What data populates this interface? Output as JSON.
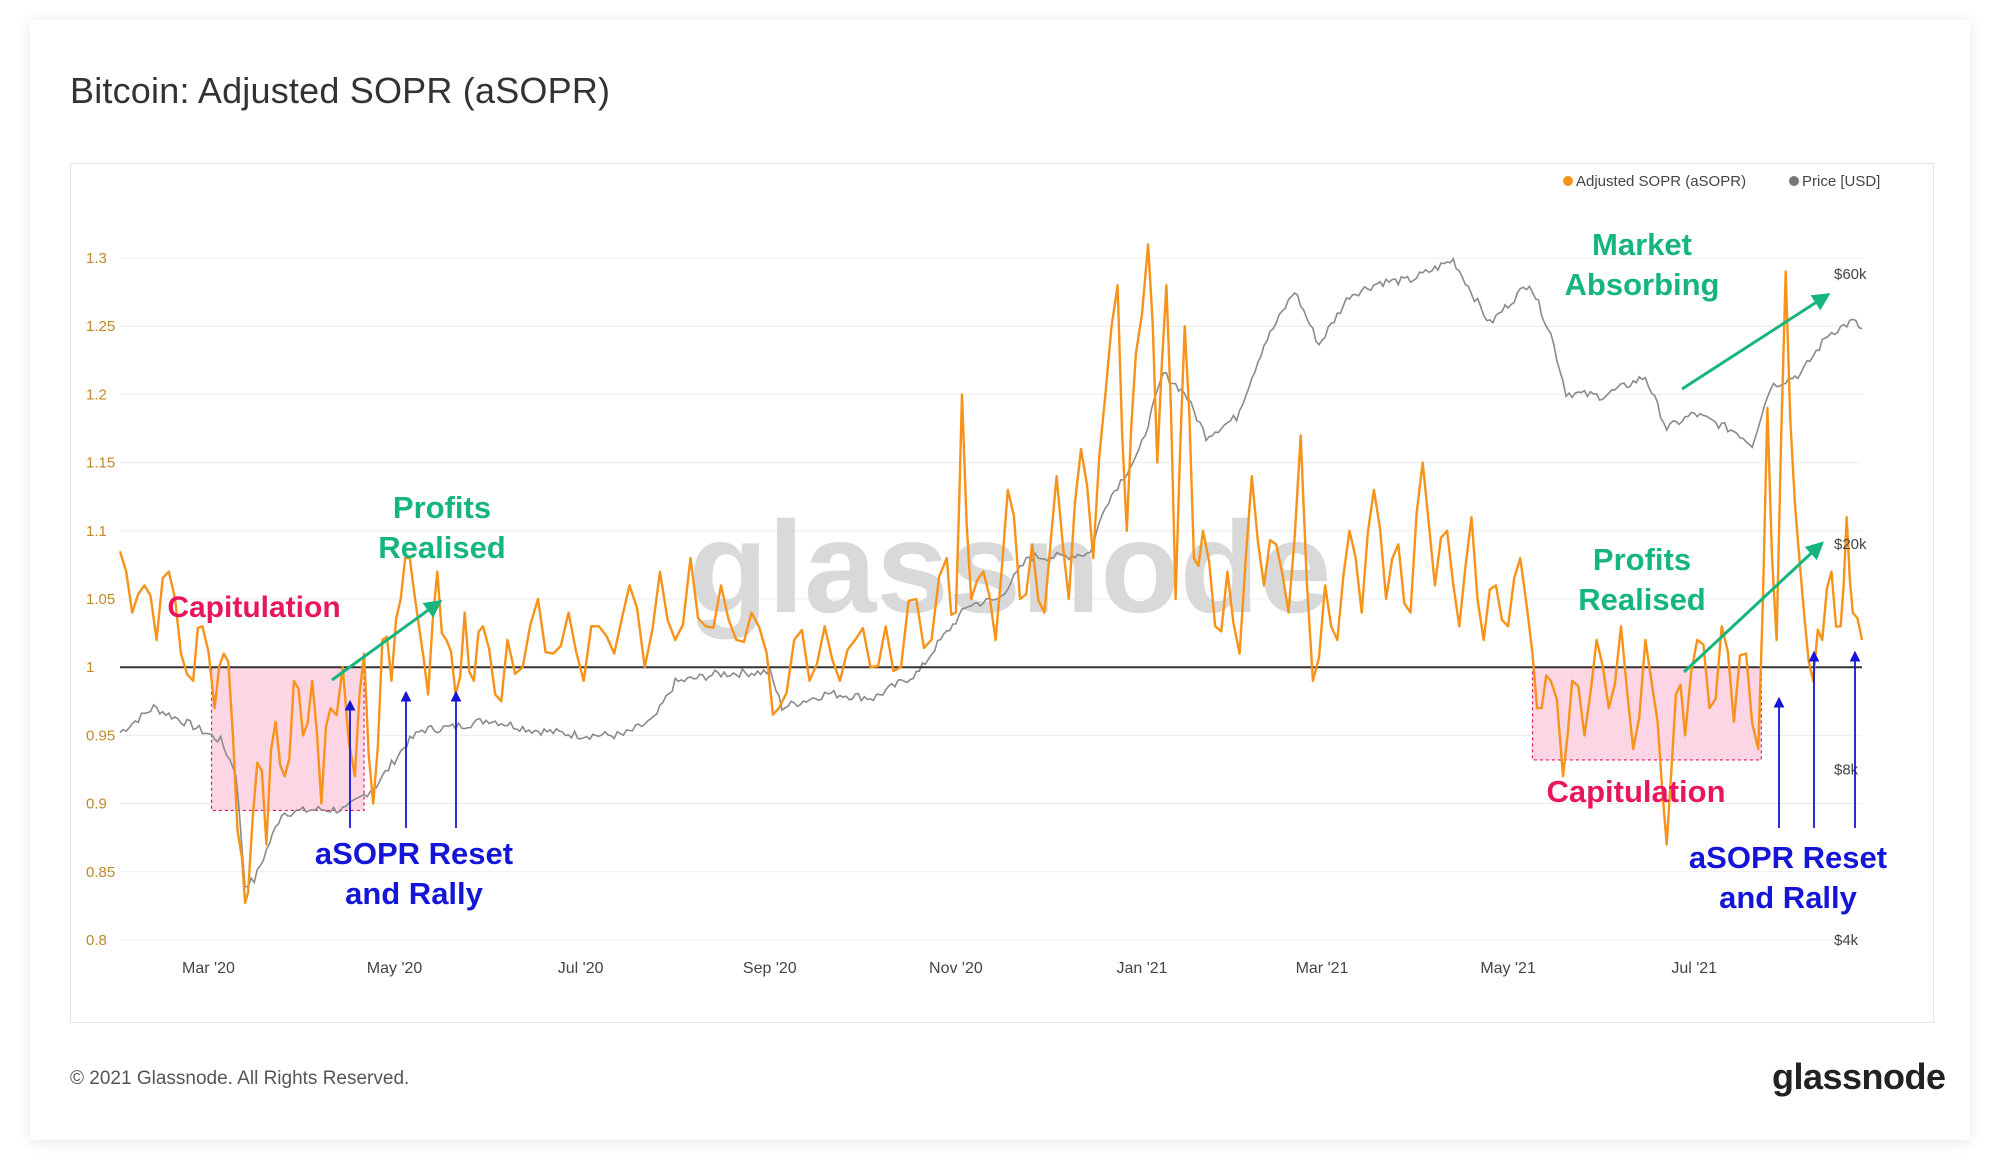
{
  "title": "Bitcoin: Adjusted SOPR (aSOPR)",
  "footer": "© 2021 Glassnode. All Rights Reserved.",
  "brand": "glassnode",
  "watermark": "glassnode",
  "colors": {
    "asopr": "#f7931a",
    "price": "#8a8a8a",
    "green": "#16b57e",
    "red": "#e8175d",
    "blue": "#1515d8",
    "pink_fill": "#fdd6e5"
  },
  "legend": [
    {
      "label": "Adjusted SOPR (aSOPR)",
      "color": "#f7931a"
    },
    {
      "label": "Price [USD]",
      "color": "#777777"
    }
  ],
  "annotations": [
    {
      "lines": [
        "Capitulation"
      ],
      "color": "#e8175d",
      "kind": "text"
    },
    {
      "lines": [
        "Profits",
        "Realised"
      ],
      "color": "#16b57e",
      "kind": "text"
    },
    {
      "lines": [
        "aSOPR Reset",
        "and Rally"
      ],
      "color": "#1515d8",
      "kind": "text"
    },
    {
      "lines": [
        "Market",
        "Absorbing"
      ],
      "color": "#16b57e",
      "kind": "text"
    },
    {
      "lines": [
        "Profits",
        "Realised"
      ],
      "color": "#16b57e",
      "kind": "text"
    },
    {
      "lines": [
        "Capitulation"
      ],
      "color": "#e8175d",
      "kind": "text"
    },
    {
      "lines": [
        "aSOPR Reset",
        "and Rally"
      ],
      "color": "#1515d8",
      "kind": "text"
    }
  ],
  "chart_data": {
    "type": "line",
    "x_range": [
      "2020-02-01",
      "2021-08-25"
    ],
    "x_ticks": [
      {
        "label": "Mar '20",
        "date": "2020-03-01"
      },
      {
        "label": "May '20",
        "date": "2020-05-01"
      },
      {
        "label": "Jul '20",
        "date": "2020-07-01"
      },
      {
        "label": "Sep '20",
        "date": "2020-09-01"
      },
      {
        "label": "Nov '20",
        "date": "2020-11-01"
      },
      {
        "label": "Jan '21",
        "date": "2021-01-01"
      },
      {
        "label": "Mar '21",
        "date": "2021-03-01"
      },
      {
        "label": "May '21",
        "date": "2021-05-01"
      },
      {
        "label": "Jul '21",
        "date": "2021-07-01"
      }
    ],
    "y_left": {
      "min": 0.8,
      "max": 1.3,
      "ticks": [
        {
          "label": "0.8",
          "value": 0.8
        },
        {
          "label": "0.85",
          "value": 0.85
        },
        {
          "label": "0.9",
          "value": 0.9
        },
        {
          "label": "0.95",
          "value": 0.95
        },
        {
          "label": "1",
          "value": 1.0
        },
        {
          "label": "1.05",
          "value": 1.05
        },
        {
          "label": "1.1",
          "value": 1.1
        },
        {
          "label": "1.15",
          "value": 1.15
        },
        {
          "label": "1.2",
          "value": 1.2
        },
        {
          "label": "1.25",
          "value": 1.25
        },
        {
          "label": "1.3",
          "value": 1.3
        }
      ]
    },
    "y_right": {
      "scale": "log",
      "min": 4000,
      "max": 64000,
      "ticks": [
        {
          "label": "$4k",
          "value": 4000
        },
        {
          "label": "$8k",
          "value": 8000
        },
        {
          "label": "$20k",
          "value": 20000
        },
        {
          "label": "$60k",
          "value": 60000
        }
      ]
    },
    "baseline": 1.0,
    "series": [
      {
        "name": "Adjusted SOPR (aSOPR)",
        "axis": "left",
        "points": [
          [
            "2020-02-01",
            1.085
          ],
          [
            "2020-02-05",
            1.04
          ],
          [
            "2020-02-09",
            1.06
          ],
          [
            "2020-02-13",
            1.02
          ],
          [
            "2020-02-17",
            1.07
          ],
          [
            "2020-02-21",
            1.01
          ],
          [
            "2020-02-25",
            0.99
          ],
          [
            "2020-02-28",
            1.03
          ],
          [
            "2020-03-03",
            0.97
          ],
          [
            "2020-03-06",
            1.01
          ],
          [
            "2020-03-09",
            0.95
          ],
          [
            "2020-03-12",
            0.86
          ],
          [
            "2020-03-14",
            0.835
          ],
          [
            "2020-03-17",
            0.93
          ],
          [
            "2020-03-20",
            0.87
          ],
          [
            "2020-03-23",
            0.96
          ],
          [
            "2020-03-26",
            0.92
          ],
          [
            "2020-03-29",
            0.99
          ],
          [
            "2020-04-01",
            0.95
          ],
          [
            "2020-04-04",
            0.99
          ],
          [
            "2020-04-07",
            0.9
          ],
          [
            "2020-04-10",
            0.97
          ],
          [
            "2020-04-14",
            1.0
          ],
          [
            "2020-04-18",
            0.92
          ],
          [
            "2020-04-21",
            1.01
          ],
          [
            "2020-04-24",
            0.9
          ],
          [
            "2020-04-27",
            1.02
          ],
          [
            "2020-04-30",
            0.99
          ],
          [
            "2020-05-03",
            1.05
          ],
          [
            "2020-05-06",
            1.08
          ],
          [
            "2020-05-09",
            1.03
          ],
          [
            "2020-05-12",
            0.98
          ],
          [
            "2020-05-15",
            1.07
          ],
          [
            "2020-05-18",
            1.02
          ],
          [
            "2020-05-21",
            0.98
          ],
          [
            "2020-05-24",
            1.04
          ],
          [
            "2020-05-27",
            0.99
          ],
          [
            "2020-05-30",
            1.03
          ],
          [
            "2020-06-03",
            0.98
          ],
          [
            "2020-06-07",
            1.02
          ],
          [
            "2020-06-12",
            1.0
          ],
          [
            "2020-06-17",
            1.05
          ],
          [
            "2020-06-22",
            1.01
          ],
          [
            "2020-06-27",
            1.04
          ],
          [
            "2020-07-02",
            0.99
          ],
          [
            "2020-07-07",
            1.03
          ],
          [
            "2020-07-12",
            1.01
          ],
          [
            "2020-07-17",
            1.06
          ],
          [
            "2020-07-22",
            1.0
          ],
          [
            "2020-07-27",
            1.07
          ],
          [
            "2020-08-01",
            1.02
          ],
          [
            "2020-08-06",
            1.08
          ],
          [
            "2020-08-11",
            1.03
          ],
          [
            "2020-08-16",
            1.06
          ],
          [
            "2020-08-21",
            1.02
          ],
          [
            "2020-08-26",
            1.04
          ],
          [
            "2020-08-31",
            1.01
          ],
          [
            "2020-09-04",
            0.97
          ],
          [
            "2020-09-09",
            1.02
          ],
          [
            "2020-09-14",
            0.99
          ],
          [
            "2020-09-19",
            1.03
          ],
          [
            "2020-09-24",
            0.99
          ],
          [
            "2020-09-29",
            1.02
          ],
          [
            "2020-10-04",
            1.0
          ],
          [
            "2020-10-09",
            1.03
          ],
          [
            "2020-10-14",
            1.0
          ],
          [
            "2020-10-19",
            1.05
          ],
          [
            "2020-10-24",
            1.02
          ],
          [
            "2020-10-29",
            1.08
          ],
          [
            "2020-11-01",
            1.04
          ],
          [
            "2020-11-03",
            1.2
          ],
          [
            "2020-11-06",
            1.05
          ],
          [
            "2020-11-10",
            1.07
          ],
          [
            "2020-11-14",
            1.02
          ],
          [
            "2020-11-18",
            1.13
          ],
          [
            "2020-11-22",
            1.05
          ],
          [
            "2020-11-26",
            1.09
          ],
          [
            "2020-11-30",
            1.04
          ],
          [
            "2020-12-04",
            1.14
          ],
          [
            "2020-12-08",
            1.05
          ],
          [
            "2020-12-12",
            1.16
          ],
          [
            "2020-12-16",
            1.08
          ],
          [
            "2020-12-20",
            1.2
          ],
          [
            "2020-12-24",
            1.28
          ],
          [
            "2020-12-27",
            1.1
          ],
          [
            "2020-12-30",
            1.23
          ],
          [
            "2021-01-03",
            1.31
          ],
          [
            "2021-01-06",
            1.15
          ],
          [
            "2021-01-09",
            1.28
          ],
          [
            "2021-01-12",
            1.05
          ],
          [
            "2021-01-15",
            1.25
          ],
          [
            "2021-01-18",
            1.08
          ],
          [
            "2021-01-21",
            1.1
          ],
          [
            "2021-01-25",
            1.03
          ],
          [
            "2021-01-29",
            1.07
          ],
          [
            "2021-02-02",
            1.01
          ],
          [
            "2021-02-06",
            1.14
          ],
          [
            "2021-02-10",
            1.06
          ],
          [
            "2021-02-14",
            1.09
          ],
          [
            "2021-02-18",
            1.04
          ],
          [
            "2021-02-22",
            1.17
          ],
          [
            "2021-02-26",
            0.99
          ],
          [
            "2021-03-02",
            1.06
          ],
          [
            "2021-03-06",
            1.02
          ],
          [
            "2021-03-10",
            1.1
          ],
          [
            "2021-03-14",
            1.04
          ],
          [
            "2021-03-18",
            1.13
          ],
          [
            "2021-03-22",
            1.05
          ],
          [
            "2021-03-26",
            1.09
          ],
          [
            "2021-03-30",
            1.04
          ],
          [
            "2021-04-03",
            1.15
          ],
          [
            "2021-04-07",
            1.06
          ],
          [
            "2021-04-11",
            1.1
          ],
          [
            "2021-04-15",
            1.03
          ],
          [
            "2021-04-19",
            1.11
          ],
          [
            "2021-04-23",
            1.02
          ],
          [
            "2021-04-27",
            1.06
          ],
          [
            "2021-05-01",
            1.03
          ],
          [
            "2021-05-05",
            1.08
          ],
          [
            "2021-05-09",
            1.01
          ],
          [
            "2021-05-12",
            0.97
          ],
          [
            "2021-05-15",
            0.99
          ],
          [
            "2021-05-19",
            0.92
          ],
          [
            "2021-05-22",
            0.99
          ],
          [
            "2021-05-26",
            0.95
          ],
          [
            "2021-05-30",
            1.02
          ],
          [
            "2021-06-03",
            0.97
          ],
          [
            "2021-06-07",
            1.03
          ],
          [
            "2021-06-11",
            0.94
          ],
          [
            "2021-06-15",
            1.02
          ],
          [
            "2021-06-19",
            0.96
          ],
          [
            "2021-06-22",
            0.87
          ],
          [
            "2021-06-25",
            0.98
          ],
          [
            "2021-06-28",
            0.95
          ],
          [
            "2021-07-02",
            1.02
          ],
          [
            "2021-07-06",
            0.97
          ],
          [
            "2021-07-10",
            1.03
          ],
          [
            "2021-07-14",
            0.96
          ],
          [
            "2021-07-18",
            1.01
          ],
          [
            "2021-07-22",
            0.94
          ],
          [
            "2021-07-25",
            1.19
          ],
          [
            "2021-07-28",
            1.02
          ],
          [
            "2021-07-31",
            1.29
          ],
          [
            "2021-08-03",
            1.12
          ],
          [
            "2021-08-06",
            1.04
          ],
          [
            "2021-08-09",
            0.99
          ],
          [
            "2021-08-12",
            1.02
          ],
          [
            "2021-08-15",
            1.07
          ],
          [
            "2021-08-18",
            1.03
          ],
          [
            "2021-08-20",
            1.11
          ],
          [
            "2021-08-22",
            1.04
          ],
          [
            "2021-08-25",
            1.02
          ]
        ]
      },
      {
        "name": "Price [USD]",
        "axis": "right",
        "points": [
          [
            "2020-02-01",
            9300
          ],
          [
            "2020-02-12",
            10300
          ],
          [
            "2020-02-24",
            9600
          ],
          [
            "2020-03-05",
            9000
          ],
          [
            "2020-03-10",
            7900
          ],
          [
            "2020-03-13",
            5000
          ],
          [
            "2020-03-16",
            5100
          ],
          [
            "2020-03-25",
            6700
          ],
          [
            "2020-04-05",
            6800
          ],
          [
            "2020-04-15",
            6800
          ],
          [
            "2020-04-25",
            7500
          ],
          [
            "2020-05-05",
            8900
          ],
          [
            "2020-05-10",
            9400
          ],
          [
            "2020-05-20",
            9500
          ],
          [
            "2020-06-01",
            9800
          ],
          [
            "2020-06-15",
            9400
          ],
          [
            "2020-07-01",
            9200
          ],
          [
            "2020-07-15",
            9200
          ],
          [
            "2020-07-25",
            9800
          ],
          [
            "2020-08-01",
            11400
          ],
          [
            "2020-08-15",
            11800
          ],
          [
            "2020-09-01",
            11900
          ],
          [
            "2020-09-05",
            10300
          ],
          [
            "2020-09-20",
            10900
          ],
          [
            "2020-10-05",
            10700
          ],
          [
            "2020-10-20",
            11900
          ],
          [
            "2020-10-25",
            13100
          ],
          [
            "2020-11-05",
            15600
          ],
          [
            "2020-11-15",
            16000
          ],
          [
            "2020-11-25",
            19000
          ],
          [
            "2020-12-05",
            19000
          ],
          [
            "2020-12-15",
            19300
          ],
          [
            "2020-12-20",
            23500
          ],
          [
            "2020-12-31",
            29000
          ],
          [
            "2021-01-08",
            40000
          ],
          [
            "2021-01-15",
            37000
          ],
          [
            "2021-01-22",
            31000
          ],
          [
            "2021-02-01",
            33500
          ],
          [
            "2021-02-10",
            45000
          ],
          [
            "2021-02-20",
            56000
          ],
          [
            "2021-02-28",
            45000
          ],
          [
            "2021-03-10",
            55000
          ],
          [
            "2021-03-20",
            58000
          ],
          [
            "2021-03-30",
            58500
          ],
          [
            "2021-04-13",
            63500
          ],
          [
            "2021-04-25",
            49000
          ],
          [
            "2021-05-08",
            58000
          ],
          [
            "2021-05-15",
            47000
          ],
          [
            "2021-05-20",
            37000
          ],
          [
            "2021-06-01",
            36500
          ],
          [
            "2021-06-15",
            39500
          ],
          [
            "2021-06-22",
            32000
          ],
          [
            "2021-07-01",
            34000
          ],
          [
            "2021-07-15",
            31500
          ],
          [
            "2021-07-20",
            30000
          ],
          [
            "2021-07-26",
            38000
          ],
          [
            "2021-08-05",
            40000
          ],
          [
            "2021-08-14",
            47000
          ],
          [
            "2021-08-22",
            49500
          ],
          [
            "2021-08-25",
            48000
          ]
        ]
      }
    ]
  }
}
